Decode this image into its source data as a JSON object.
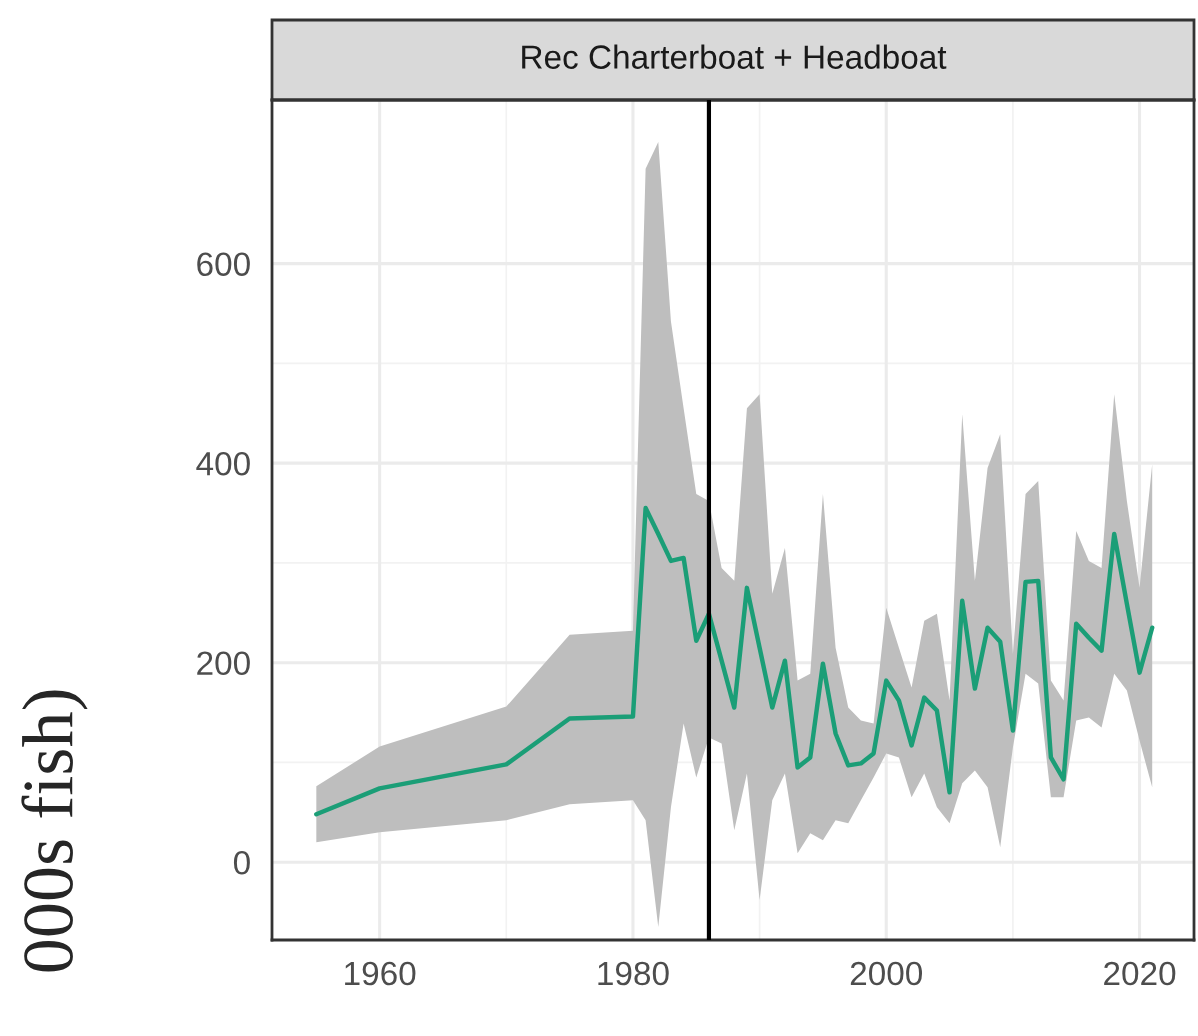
{
  "chart_data": {
    "type": "line",
    "title": "Rec Charterboat + Headboat",
    "ylabel": "000s fish)",
    "x": [
      1955,
      1960,
      1970,
      1975,
      1980,
      1981,
      1982,
      1983,
      1984,
      1985,
      1986,
      1987,
      1988,
      1989,
      1990,
      1991,
      1992,
      1993,
      1994,
      1995,
      1996,
      1997,
      1998,
      1999,
      2000,
      2001,
      2002,
      2003,
      2004,
      2005,
      2006,
      2007,
      2008,
      2009,
      2010,
      2011,
      2012,
      2013,
      2014,
      2015,
      2016,
      2017,
      2018,
      2019,
      2020,
      2021
    ],
    "series": [
      {
        "color": "#1b9e77",
        "values": [
          48,
          74,
          98,
          144,
          146,
          355,
          329,
          302,
          305,
          222,
          249,
          202,
          155,
          275,
          215,
          155,
          202,
          95,
          105,
          199,
          129,
          97,
          99,
          109,
          182,
          162,
          117,
          165,
          152,
          70,
          262,
          174,
          235,
          221,
          132,
          281,
          282,
          105,
          83,
          239,
          225,
          212,
          329,
          259,
          190,
          235
        ],
        "lower": [
          20,
          30,
          42,
          58,
          62,
          42,
          -65,
          55,
          139,
          85,
          125,
          119,
          32,
          89,
          -38,
          62,
          89,
          9,
          29,
          22,
          42,
          39,
          62,
          85,
          109,
          105,
          65,
          89,
          55,
          39,
          79,
          92,
          75,
          15,
          115,
          189,
          179,
          65,
          65,
          142,
          145,
          135,
          189,
          172,
          122,
          75
        ],
        "upper": [
          76,
          116,
          156,
          228,
          232,
          695,
          722,
          542,
          455,
          369,
          362,
          295,
          282,
          455,
          469,
          269,
          315,
          182,
          189,
          369,
          215,
          155,
          142,
          139,
          255,
          215,
          175,
          242,
          249,
          162,
          449,
          282,
          395,
          429,
          209,
          369,
          382,
          182,
          162,
          332,
          302,
          295,
          469,
          362,
          275,
          399
        ]
      }
    ],
    "xlim": [
      1951.5,
      2024.3
    ],
    "ylim": [
      -78,
      764
    ],
    "xticks": [
      1960,
      1980,
      2000,
      2020
    ],
    "yticks": [
      0,
      200,
      400,
      600
    ],
    "ref_lines": [
      {
        "axis": "x",
        "value": 1986,
        "color": "#000000"
      }
    ],
    "grid": true
  }
}
